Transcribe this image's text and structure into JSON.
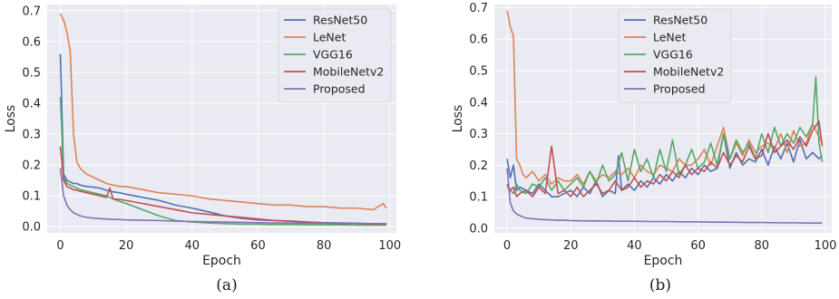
{
  "colors": {
    "background": "#eaeaf2",
    "grid": "#ffffff",
    "ResNet50": "#4c72b0",
    "LeNet": "#dd8452",
    "VGG16": "#55a868",
    "MobileNetv2": "#c44e52",
    "Proposed": "#8172b3"
  },
  "chart_data": [
    {
      "type": "line",
      "caption": "(a)",
      "xlabel": "Epoch",
      "ylabel": "Loss",
      "xlim": [
        -4,
        102
      ],
      "ylim": [
        -0.02,
        0.72
      ],
      "xticks": [
        0,
        20,
        40,
        60,
        80,
        100
      ],
      "yticks": [
        0.0,
        0.1,
        0.2,
        0.3,
        0.4,
        0.5,
        0.6,
        0.7
      ],
      "ytick_labels": [
        "0.0",
        "0.1",
        "0.2",
        "0.3",
        "0.4",
        "0.5",
        "0.6",
        "0.7"
      ],
      "grid": true,
      "legend": "top-right",
      "series": [
        {
          "name": "ResNet50",
          "x": [
            0,
            1,
            2,
            3,
            4,
            5,
            6,
            8,
            10,
            12,
            14,
            16,
            18,
            20,
            25,
            30,
            35,
            40,
            45,
            50,
            55,
            60,
            65,
            70,
            75,
            80,
            85,
            90,
            95,
            99
          ],
          "y": [
            0.56,
            0.17,
            0.15,
            0.145,
            0.14,
            0.14,
            0.135,
            0.13,
            0.128,
            0.125,
            0.118,
            0.113,
            0.11,
            0.105,
            0.095,
            0.085,
            0.07,
            0.06,
            0.048,
            0.035,
            0.027,
            0.022,
            0.02,
            0.018,
            0.015,
            0.013,
            0.012,
            0.011,
            0.01,
            0.01
          ]
        },
        {
          "name": "LeNet",
          "x": [
            0,
            1,
            2,
            3,
            4,
            5,
            6,
            8,
            10,
            12,
            14,
            16,
            18,
            20,
            25,
            30,
            35,
            40,
            45,
            50,
            55,
            60,
            65,
            70,
            75,
            80,
            85,
            90,
            95,
            98,
            99
          ],
          "y": [
            0.69,
            0.67,
            0.63,
            0.57,
            0.3,
            0.21,
            0.19,
            0.17,
            0.16,
            0.15,
            0.14,
            0.135,
            0.13,
            0.13,
            0.12,
            0.11,
            0.105,
            0.1,
            0.09,
            0.085,
            0.08,
            0.075,
            0.07,
            0.07,
            0.065,
            0.065,
            0.06,
            0.06,
            0.055,
            0.075,
            0.06
          ]
        },
        {
          "name": "VGG16",
          "x": [
            0,
            1,
            2,
            3,
            4,
            5,
            6,
            8,
            10,
            12,
            14,
            16,
            18,
            20,
            25,
            30,
            35,
            40,
            45,
            50,
            55,
            60,
            65,
            70,
            75,
            80,
            85,
            90,
            95,
            99
          ],
          "y": [
            0.42,
            0.16,
            0.14,
            0.135,
            0.13,
            0.125,
            0.12,
            0.115,
            0.11,
            0.105,
            0.1,
            0.09,
            0.082,
            0.075,
            0.055,
            0.035,
            0.02,
            0.015,
            0.012,
            0.01,
            0.008,
            0.008,
            0.007,
            0.007,
            0.006,
            0.006,
            0.006,
            0.005,
            0.005,
            0.005
          ]
        },
        {
          "name": "MobileNetv2",
          "x": [
            0,
            1,
            2,
            3,
            4,
            5,
            6,
            8,
            10,
            12,
            14,
            15,
            16,
            18,
            20,
            25,
            30,
            35,
            40,
            45,
            50,
            55,
            60,
            65,
            70,
            75,
            80,
            85,
            90,
            95,
            99
          ],
          "y": [
            0.26,
            0.15,
            0.13,
            0.125,
            0.12,
            0.118,
            0.115,
            0.11,
            0.105,
            0.1,
            0.095,
            0.125,
            0.09,
            0.088,
            0.085,
            0.075,
            0.065,
            0.055,
            0.045,
            0.04,
            0.035,
            0.03,
            0.025,
            0.02,
            0.018,
            0.015,
            0.012,
            0.01,
            0.01,
            0.008,
            0.008
          ]
        },
        {
          "name": "Proposed",
          "x": [
            0,
            1,
            2,
            3,
            4,
            5,
            6,
            8,
            10,
            12,
            14,
            16,
            18,
            20,
            25,
            30,
            35,
            40,
            45,
            50,
            55,
            60,
            65,
            70,
            75,
            80,
            85,
            90,
            95,
            99
          ],
          "y": [
            0.19,
            0.1,
            0.07,
            0.055,
            0.045,
            0.04,
            0.035,
            0.03,
            0.028,
            0.026,
            0.025,
            0.024,
            0.023,
            0.022,
            0.021,
            0.02,
            0.018,
            0.017,
            0.016,
            0.015,
            0.014,
            0.013,
            0.012,
            0.012,
            0.011,
            0.011,
            0.011,
            0.01,
            0.01,
            0.01
          ]
        }
      ]
    },
    {
      "type": "line",
      "caption": "(b)",
      "xlabel": "Epoch",
      "ylabel": "Loss",
      "xlim": [
        -4,
        102
      ],
      "ylim": [
        -0.015,
        0.71
      ],
      "xticks": [
        0,
        20,
        40,
        60,
        80,
        100
      ],
      "yticks": [
        0.0,
        0.1,
        0.2,
        0.3,
        0.4,
        0.5,
        0.6,
        0.7
      ],
      "ytick_labels": [
        "0.0",
        "0.1",
        "0.2",
        "0.3",
        "0.4",
        "0.5",
        "0.6",
        "0.7"
      ],
      "grid": true,
      "legend": "top-right",
      "series": [
        {
          "name": "ResNet50",
          "x": [
            0,
            1,
            2,
            3,
            4,
            6,
            8,
            10,
            12,
            14,
            16,
            18,
            20,
            22,
            24,
            26,
            28,
            30,
            32,
            34,
            35,
            36,
            38,
            40,
            42,
            44,
            46,
            48,
            50,
            52,
            54,
            56,
            58,
            60,
            62,
            64,
            66,
            68,
            70,
            72,
            74,
            76,
            78,
            80,
            82,
            84,
            86,
            88,
            90,
            92,
            94,
            96,
            98,
            99
          ],
          "y": [
            0.22,
            0.16,
            0.2,
            0.12,
            0.13,
            0.12,
            0.11,
            0.14,
            0.12,
            0.1,
            0.1,
            0.11,
            0.12,
            0.1,
            0.13,
            0.11,
            0.15,
            0.1,
            0.12,
            0.11,
            0.23,
            0.12,
            0.14,
            0.12,
            0.15,
            0.13,
            0.16,
            0.14,
            0.17,
            0.15,
            0.18,
            0.16,
            0.19,
            0.17,
            0.2,
            0.18,
            0.19,
            0.3,
            0.19,
            0.24,
            0.2,
            0.22,
            0.21,
            0.25,
            0.2,
            0.26,
            0.22,
            0.27,
            0.21,
            0.28,
            0.22,
            0.24,
            0.22,
            0.23
          ]
        },
        {
          "name": "LeNet",
          "x": [
            0,
            1,
            2,
            3,
            4,
            5,
            6,
            8,
            10,
            12,
            14,
            16,
            18,
            20,
            22,
            24,
            26,
            28,
            30,
            32,
            34,
            36,
            38,
            40,
            42,
            44,
            46,
            48,
            50,
            52,
            54,
            56,
            58,
            60,
            62,
            64,
            66,
            68,
            70,
            72,
            74,
            76,
            78,
            80,
            82,
            84,
            86,
            88,
            90,
            92,
            94,
            96,
            98,
            99
          ],
          "y": [
            0.69,
            0.64,
            0.61,
            0.22,
            0.2,
            0.17,
            0.16,
            0.18,
            0.15,
            0.17,
            0.14,
            0.16,
            0.15,
            0.15,
            0.17,
            0.14,
            0.18,
            0.15,
            0.17,
            0.16,
            0.18,
            0.17,
            0.19,
            0.16,
            0.2,
            0.18,
            0.17,
            0.2,
            0.19,
            0.18,
            0.22,
            0.2,
            0.2,
            0.22,
            0.25,
            0.2,
            0.26,
            0.32,
            0.22,
            0.27,
            0.23,
            0.28,
            0.24,
            0.26,
            0.27,
            0.25,
            0.3,
            0.24,
            0.31,
            0.26,
            0.27,
            0.33,
            0.29,
            0.27
          ]
        },
        {
          "name": "VGG16",
          "x": [
            0,
            1,
            2,
            3,
            4,
            6,
            8,
            10,
            12,
            14,
            16,
            18,
            20,
            22,
            24,
            26,
            28,
            30,
            32,
            34,
            36,
            38,
            40,
            42,
            44,
            46,
            48,
            50,
            52,
            54,
            56,
            58,
            60,
            62,
            64,
            66,
            68,
            70,
            72,
            74,
            76,
            78,
            80,
            82,
            84,
            86,
            88,
            90,
            92,
            94,
            96,
            97,
            98,
            99
          ],
          "y": [
            0.13,
            0.12,
            0.11,
            0.14,
            0.12,
            0.11,
            0.14,
            0.13,
            0.16,
            0.12,
            0.15,
            0.12,
            0.14,
            0.16,
            0.13,
            0.18,
            0.14,
            0.2,
            0.15,
            0.17,
            0.24,
            0.15,
            0.25,
            0.18,
            0.22,
            0.16,
            0.25,
            0.18,
            0.28,
            0.17,
            0.2,
            0.25,
            0.19,
            0.21,
            0.27,
            0.2,
            0.3,
            0.22,
            0.28,
            0.24,
            0.27,
            0.22,
            0.3,
            0.24,
            0.32,
            0.26,
            0.3,
            0.27,
            0.32,
            0.29,
            0.33,
            0.48,
            0.27,
            0.21
          ]
        },
        {
          "name": "MobileNetv2",
          "x": [
            0,
            1,
            2,
            3,
            4,
            6,
            8,
            10,
            12,
            14,
            16,
            18,
            20,
            22,
            24,
            26,
            28,
            30,
            32,
            34,
            36,
            38,
            40,
            42,
            44,
            46,
            48,
            50,
            52,
            54,
            56,
            58,
            60,
            62,
            64,
            66,
            68,
            70,
            72,
            74,
            76,
            78,
            80,
            82,
            84,
            86,
            88,
            90,
            92,
            94,
            96,
            98,
            99
          ],
          "y": [
            0.14,
            0.12,
            0.13,
            0.1,
            0.11,
            0.12,
            0.1,
            0.13,
            0.11,
            0.26,
            0.11,
            0.12,
            0.1,
            0.13,
            0.1,
            0.12,
            0.14,
            0.11,
            0.12,
            0.15,
            0.12,
            0.13,
            0.16,
            0.13,
            0.15,
            0.14,
            0.17,
            0.15,
            0.18,
            0.16,
            0.2,
            0.17,
            0.19,
            0.18,
            0.21,
            0.19,
            0.24,
            0.2,
            0.23,
            0.21,
            0.26,
            0.22,
            0.23,
            0.3,
            0.24,
            0.26,
            0.28,
            0.25,
            0.29,
            0.26,
            0.31,
            0.34,
            0.26
          ]
        },
        {
          "name": "Proposed",
          "x": [
            0,
            1,
            2,
            3,
            4,
            5,
            6,
            8,
            10,
            12,
            14,
            16,
            18,
            20,
            25,
            30,
            35,
            40,
            45,
            50,
            55,
            60,
            65,
            70,
            75,
            80,
            85,
            90,
            95,
            99
          ],
          "y": [
            0.19,
            0.08,
            0.055,
            0.045,
            0.04,
            0.035,
            0.032,
            0.03,
            0.028,
            0.027,
            0.026,
            0.025,
            0.025,
            0.024,
            0.023,
            0.023,
            0.022,
            0.022,
            0.021,
            0.021,
            0.02,
            0.02,
            0.019,
            0.019,
            0.018,
            0.018,
            0.017,
            0.017,
            0.016,
            0.016
          ]
        }
      ]
    }
  ]
}
